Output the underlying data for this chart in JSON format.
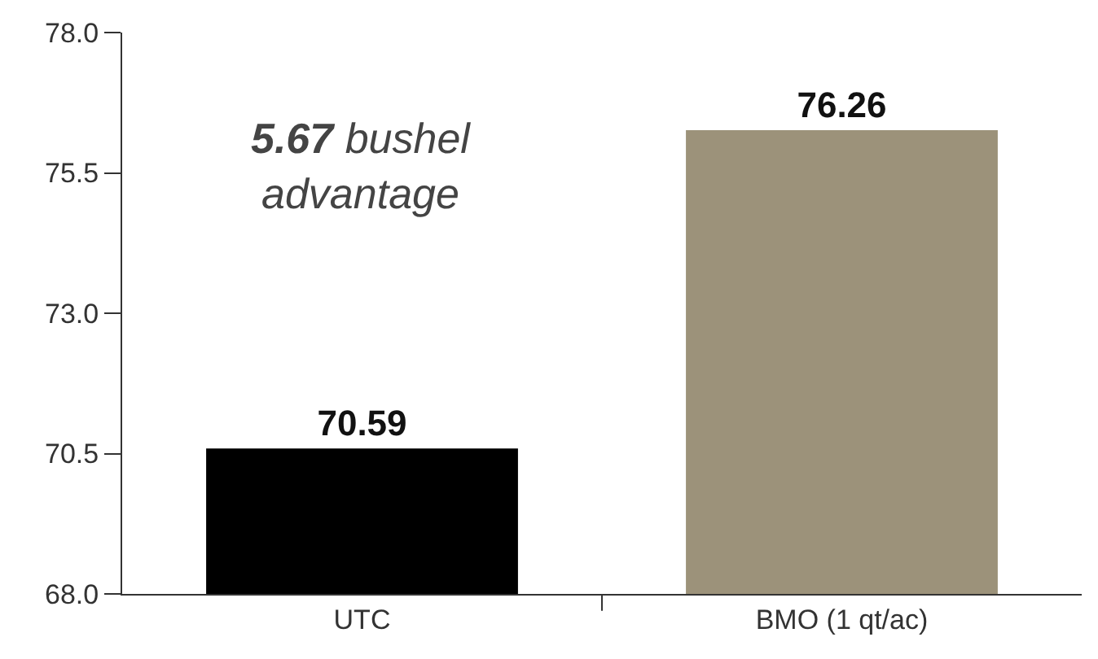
{
  "chart_data": {
    "type": "bar",
    "categories": [
      "UTC",
      "BMO (1 qt/ac)"
    ],
    "values": [
      70.59,
      76.26
    ],
    "colors": [
      "#000000",
      "#9c927a"
    ],
    "data_labels": true,
    "ylim": [
      68,
      78
    ],
    "yticks": [
      {
        "value": 68,
        "label": "68.0"
      },
      {
        "value": 70.5,
        "label": "70.5"
      },
      {
        "value": 73,
        "label": "73.0"
      },
      {
        "value": 75.5,
        "label": "75.5"
      },
      {
        "value": 78,
        "label": "78.0"
      }
    ],
    "annotations": [
      "5.67 bushel advantage"
    ]
  }
}
